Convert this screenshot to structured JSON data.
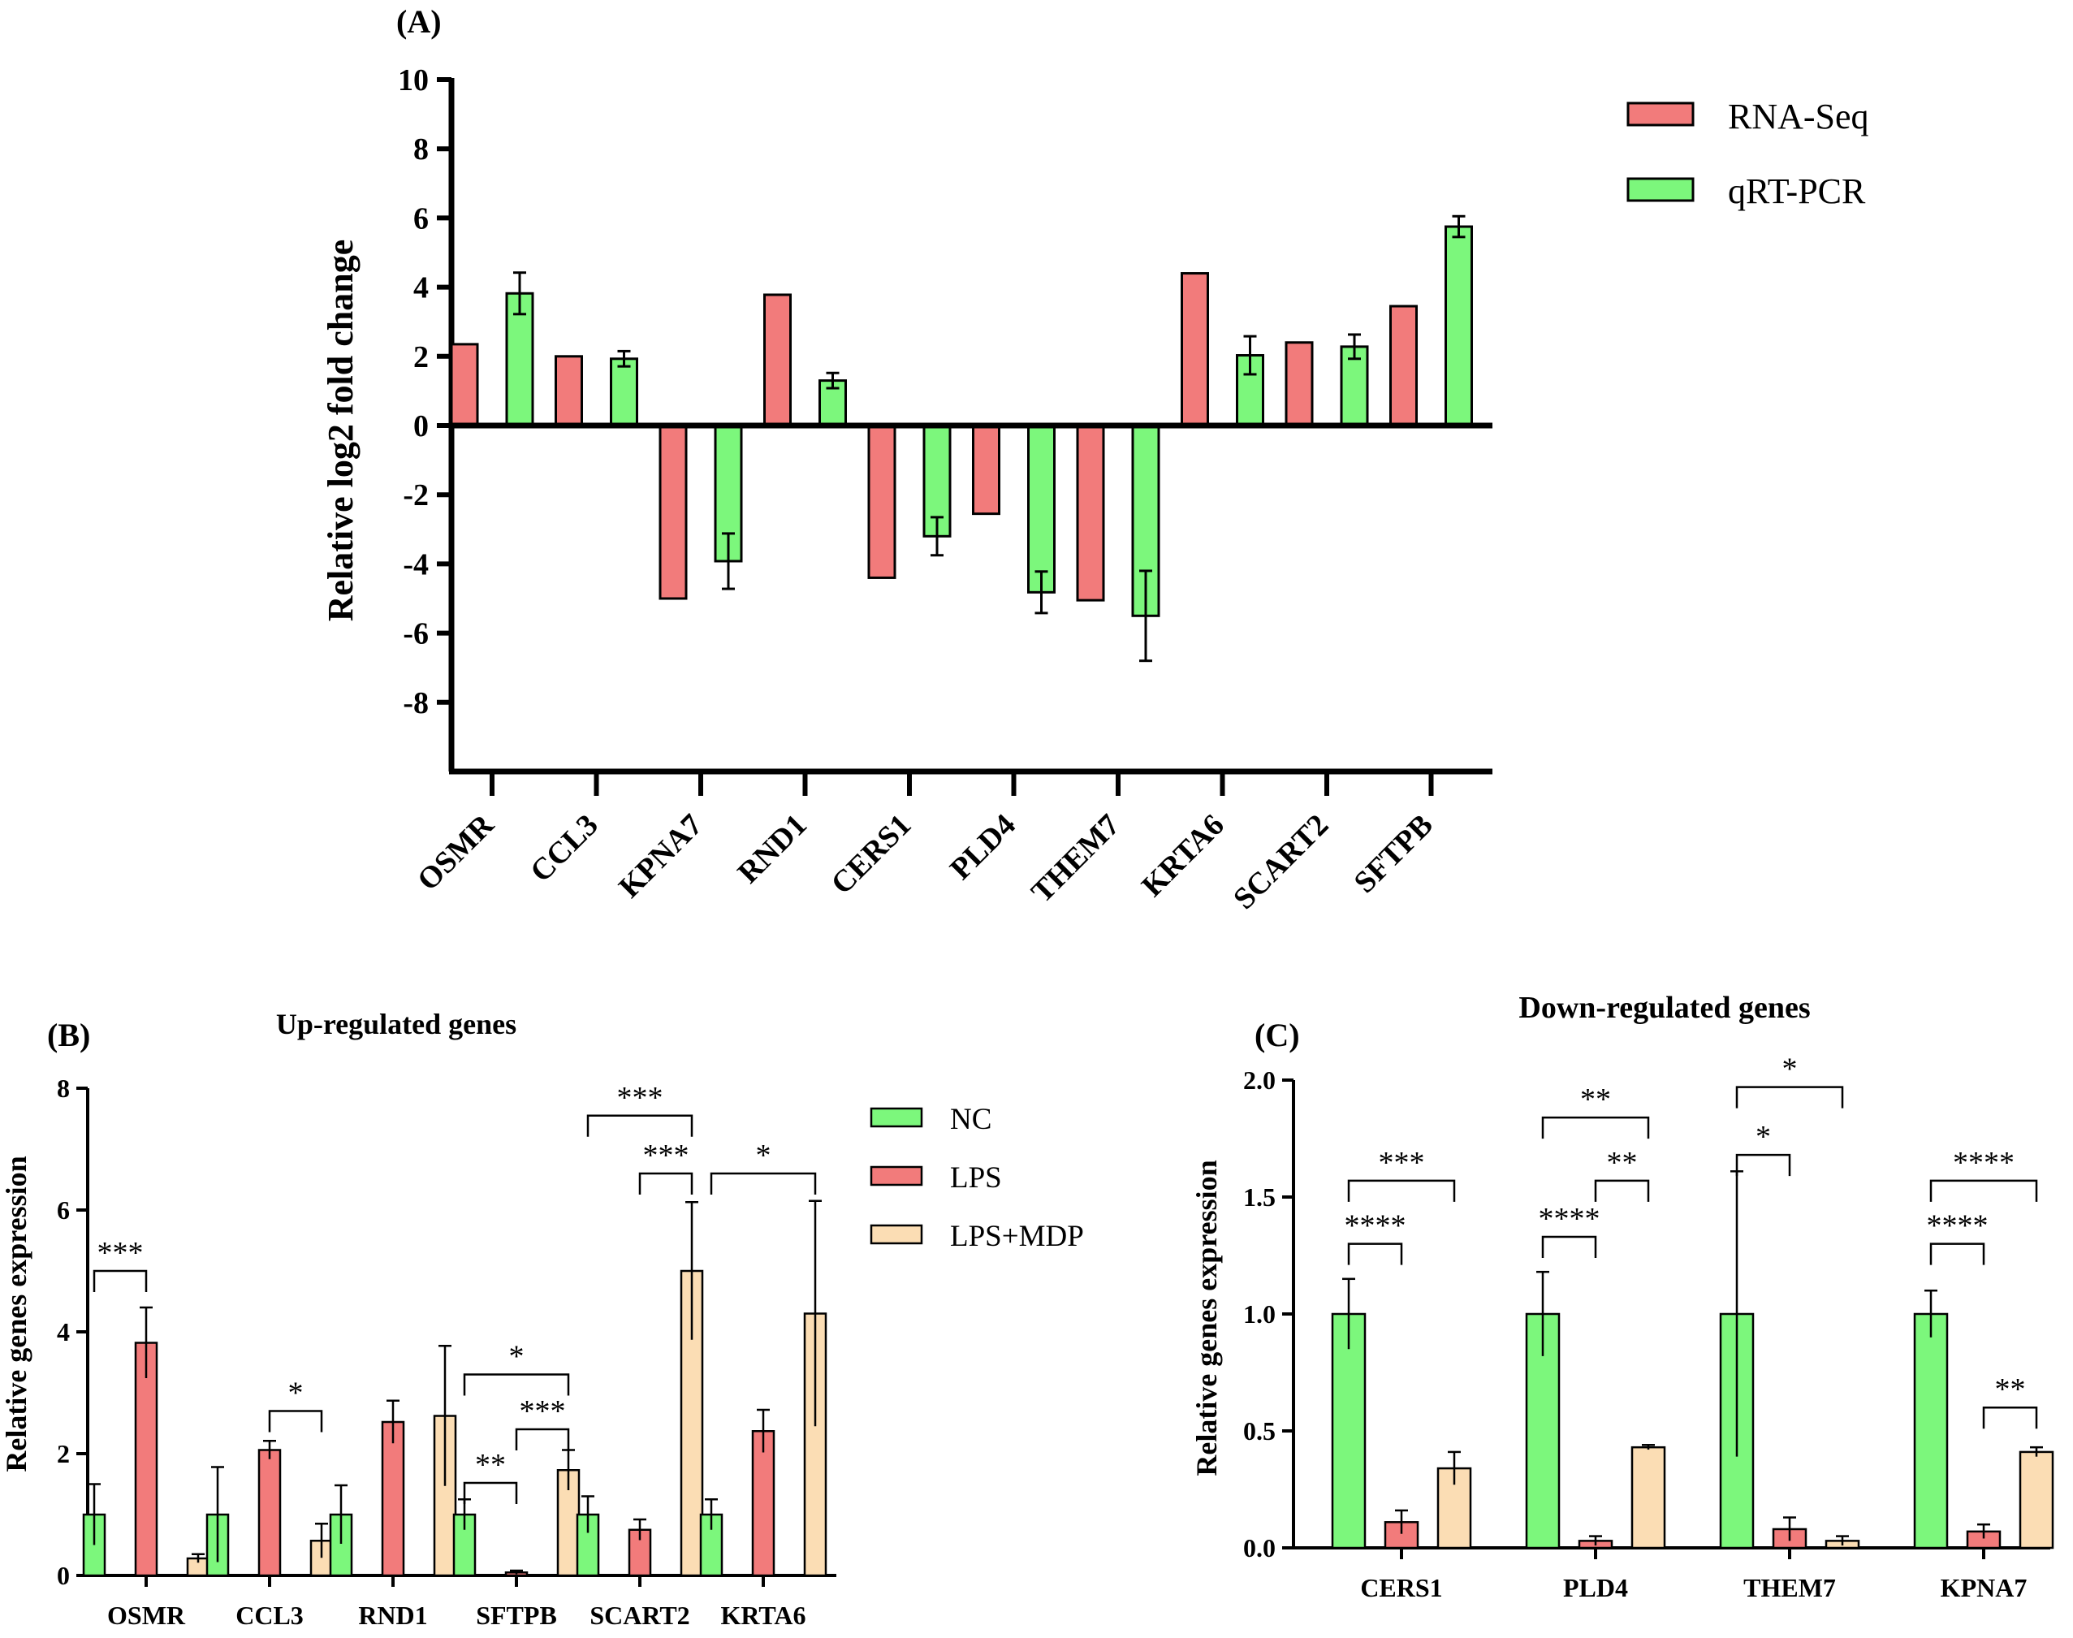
{
  "colors": {
    "rnaseq": "#F27B7B",
    "qrtpcr": "#7CF77C",
    "nc": "#7CF77C",
    "lps": "#F27B7B",
    "lpsmdp": "#FBDDB4",
    "axis": "#000000"
  },
  "chart_data": [
    {
      "id": "A",
      "panel_label": "(A)",
      "type": "bar",
      "title": "",
      "xlabel": "",
      "ylabel": "Relative log2 fold change",
      "ylim": [
        -10,
        10
      ],
      "yticks": [
        10,
        8,
        6,
        4,
        2,
        0,
        -2,
        -4,
        -6,
        -8
      ],
      "categories": [
        "OSMR",
        "CCL3",
        "KPNA7",
        "RND1",
        "CERS1",
        "PLD4",
        "THEM7",
        "KRTA6",
        "SCART2",
        "SFTPB"
      ],
      "series": [
        {
          "name": "RNA-Seq",
          "color_key": "rnaseq",
          "values": [
            2.35,
            2.0,
            -5.0,
            3.78,
            -4.4,
            -2.55,
            -5.05,
            4.4,
            2.4,
            3.45
          ],
          "errors": null
        },
        {
          "name": "qRT-PCR",
          "color_key": "qrtpcr",
          "values": [
            3.82,
            1.93,
            -3.92,
            1.3,
            -3.2,
            -4.82,
            -5.5,
            2.03,
            2.28,
            5.75
          ],
          "errors": [
            0.6,
            0.22,
            0.8,
            0.22,
            0.55,
            0.6,
            1.3,
            0.55,
            0.35,
            0.3
          ]
        }
      ],
      "legend": [
        "RNA-Seq",
        "qRT-PCR"
      ],
      "legend_position": "top-right"
    },
    {
      "id": "B",
      "panel_label": "(B)",
      "type": "bar",
      "title": "Up-regulated genes",
      "xlabel": "",
      "ylabel": "Relative genes expression",
      "ylim": [
        0,
        8
      ],
      "yticks": [
        0,
        2,
        4,
        6,
        8
      ],
      "categories": [
        "OSMR",
        "CCL3",
        "RND1",
        "SFTPB",
        "SCART2",
        "KRTA6"
      ],
      "series": [
        {
          "name": "NC",
          "color_key": "nc",
          "values": [
            1.0,
            1.0,
            1.0,
            1.0,
            1.0,
            1.0
          ],
          "errors": [
            0.5,
            0.78,
            0.48,
            0.25,
            0.3,
            0.25
          ]
        },
        {
          "name": "LPS",
          "color_key": "lps",
          "values": [
            3.82,
            2.06,
            2.52,
            0.05,
            0.75,
            2.37
          ],
          "errors": [
            0.58,
            0.15,
            0.35,
            0.03,
            0.17,
            0.35
          ]
        },
        {
          "name": "LPS+MDP",
          "color_key": "lpsmdp",
          "values": [
            0.28,
            0.57,
            2.62,
            1.73,
            5.0,
            4.3
          ],
          "errors": [
            0.07,
            0.28,
            1.15,
            0.33,
            1.13,
            1.85
          ]
        }
      ],
      "legend": [
        "NC",
        "LPS",
        "LPS+MDP"
      ],
      "legend_position": "right",
      "significance": [
        {
          "cat": 0,
          "from": 0,
          "to": 1,
          "y": 5.0,
          "label": "***"
        },
        {
          "cat": 1,
          "from": 1,
          "to": 2,
          "y": 2.7,
          "label": "*"
        },
        {
          "cat": 3,
          "from": 0,
          "to": 1,
          "y": 1.52,
          "label": "**"
        },
        {
          "cat": 3,
          "from": 1,
          "to": 2,
          "y": 2.4,
          "label": "***"
        },
        {
          "cat": 3,
          "from": 0,
          "to": 2,
          "y": 3.3,
          "label": "*"
        },
        {
          "cat": 4,
          "from": 1,
          "to": 2,
          "y": 6.6,
          "label": "***"
        },
        {
          "cat": 4,
          "from": 0,
          "to": 2,
          "y": 7.55,
          "label": "***"
        },
        {
          "cat": 5,
          "from": 0,
          "to": 2,
          "y": 6.6,
          "label": "*"
        }
      ]
    },
    {
      "id": "C",
      "panel_label": "(C)",
      "type": "bar",
      "title": "Down-regulated genes",
      "xlabel": "",
      "ylabel": "Relative genes expression",
      "ylim": [
        0,
        2.0
      ],
      "yticks": [
        0.0,
        0.5,
        1.0,
        1.5,
        2.0
      ],
      "categories": [
        "CERS1",
        "PLD4",
        "THEM7",
        "KPNA7"
      ],
      "series": [
        {
          "name": "NC",
          "color_key": "nc",
          "values": [
            1.0,
            1.0,
            1.0,
            1.0
          ],
          "errors": [
            0.15,
            0.18,
            0.61,
            0.1
          ]
        },
        {
          "name": "LPS",
          "color_key": "lps",
          "values": [
            0.11,
            0.03,
            0.08,
            0.07
          ],
          "errors": [
            0.05,
            0.02,
            0.05,
            0.03
          ]
        },
        {
          "name": "LPS+MDP",
          "color_key": "lpsmdp",
          "values": [
            0.34,
            0.43,
            0.03,
            0.41
          ],
          "errors": [
            0.07,
            0.01,
            0.02,
            0.02
          ]
        }
      ],
      "significance": [
        {
          "cat": 0,
          "from": 0,
          "to": 1,
          "y": 1.3,
          "label": "****"
        },
        {
          "cat": 0,
          "from": 0,
          "to": 2,
          "y": 1.57,
          "label": "***"
        },
        {
          "cat": 1,
          "from": 0,
          "to": 1,
          "y": 1.33,
          "label": "****"
        },
        {
          "cat": 1,
          "from": 1,
          "to": 2,
          "y": 1.57,
          "label": "**"
        },
        {
          "cat": 1,
          "from": 0,
          "to": 2,
          "y": 1.84,
          "label": "**"
        },
        {
          "cat": 2,
          "from": 0,
          "to": 1,
          "y": 1.68,
          "label": "*"
        },
        {
          "cat": 2,
          "from": 0,
          "to": 2,
          "y": 1.97,
          "label": "*"
        },
        {
          "cat": 3,
          "from": 0,
          "to": 1,
          "y": 1.3,
          "label": "****"
        },
        {
          "cat": 3,
          "from": 0,
          "to": 2,
          "y": 1.57,
          "label": "****"
        },
        {
          "cat": 3,
          "from": 1,
          "to": 2,
          "y": 0.6,
          "label": "**"
        }
      ]
    }
  ]
}
